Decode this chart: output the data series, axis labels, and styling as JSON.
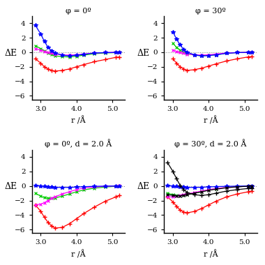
{
  "titles": [
    "φ = 0º",
    "φ = 30º",
    "φ = 0º, d = 2.0 Å",
    "φ = 30º, d = 2.0 Å"
  ],
  "xlabel": "r /Å",
  "ylabel": "ΔE",
  "xlim": [
    2.75,
    5.35
  ],
  "ylim": [
    -6.5,
    5.0
  ],
  "yticks": [
    -6,
    -4,
    -2,
    0,
    2,
    4
  ],
  "xticks": [
    3.0,
    4.0,
    5.0
  ],
  "panel0": {
    "red_plus": {
      "x": [
        2.85,
        3.0,
        3.1,
        3.2,
        3.3,
        3.4,
        3.6,
        3.8,
        4.0,
        4.2,
        4.5,
        4.8,
        5.1,
        5.2
      ],
      "y": [
        -0.9,
        -1.5,
        -2.0,
        -2.3,
        -2.5,
        -2.6,
        -2.5,
        -2.3,
        -2.0,
        -1.7,
        -1.3,
        -1.0,
        -0.7,
        -0.65
      ]
    },
    "green_x": {
      "x": [
        2.85,
        3.0,
        3.1,
        3.2,
        3.3,
        3.4,
        3.6,
        3.8,
        4.0,
        4.2,
        4.5,
        4.8,
        5.1,
        5.2
      ],
      "y": [
        0.9,
        0.5,
        0.2,
        -0.1,
        -0.3,
        -0.5,
        -0.6,
        -0.65,
        -0.55,
        -0.4,
        -0.2,
        -0.1,
        -0.05,
        -0.02
      ]
    },
    "magenta_x": {
      "x": [
        2.85,
        3.0,
        3.1,
        3.2,
        3.3,
        3.4,
        3.6,
        3.8,
        4.0,
        4.2,
        4.5,
        4.8,
        5.1,
        5.2
      ],
      "y": [
        0.5,
        0.3,
        0.1,
        -0.05,
        -0.15,
        -0.25,
        -0.35,
        -0.4,
        -0.35,
        -0.25,
        -0.1,
        -0.05,
        0.0,
        0.02
      ]
    },
    "blue_star": {
      "x": [
        2.85,
        3.0,
        3.1,
        3.2,
        3.3,
        3.4,
        3.6,
        3.8,
        4.0,
        4.2,
        4.5,
        4.8,
        5.1,
        5.2
      ],
      "y": [
        3.7,
        2.5,
        1.5,
        0.7,
        0.2,
        -0.1,
        -0.4,
        -0.5,
        -0.4,
        -0.3,
        -0.1,
        -0.05,
        -0.02,
        -0.01
      ]
    }
  },
  "panel1": {
    "red_plus": {
      "x": [
        3.0,
        3.1,
        3.2,
        3.3,
        3.4,
        3.6,
        3.8,
        4.0,
        4.2,
        4.5,
        4.8,
        5.1,
        5.2
      ],
      "y": [
        -0.9,
        -1.5,
        -2.0,
        -2.3,
        -2.5,
        -2.4,
        -2.2,
        -1.9,
        -1.6,
        -1.2,
        -0.9,
        -0.65,
        -0.6
      ]
    },
    "green_x": {
      "x": [
        3.0,
        3.1,
        3.2,
        3.3,
        3.4,
        3.6,
        3.8,
        4.0,
        4.2,
        4.5,
        4.8,
        5.1,
        5.2
      ],
      "y": [
        1.2,
        0.7,
        0.3,
        0.0,
        -0.2,
        -0.4,
        -0.5,
        -0.45,
        -0.35,
        -0.15,
        -0.05,
        -0.02,
        0.0
      ]
    },
    "magenta_x": {
      "x": [
        3.0,
        3.1,
        3.2,
        3.3,
        3.4,
        3.6,
        3.8,
        4.0,
        4.2,
        4.5,
        4.8,
        5.1,
        5.2
      ],
      "y": [
        0.3,
        0.1,
        -0.05,
        -0.15,
        -0.25,
        -0.35,
        -0.4,
        -0.35,
        -0.25,
        -0.1,
        -0.05,
        0.0,
        0.02
      ]
    },
    "blue_star": {
      "x": [
        3.0,
        3.1,
        3.2,
        3.3,
        3.4,
        3.6,
        3.8,
        4.0,
        4.2,
        4.5,
        4.8,
        5.1,
        5.2
      ],
      "y": [
        2.8,
        1.8,
        1.0,
        0.4,
        0.0,
        -0.35,
        -0.5,
        -0.45,
        -0.35,
        -0.15,
        -0.05,
        -0.02,
        -0.01
      ]
    }
  },
  "panel2": {
    "red_plus": {
      "x": [
        2.85,
        3.0,
        3.1,
        3.2,
        3.3,
        3.4,
        3.6,
        3.8,
        4.0,
        4.2,
        4.5,
        4.8,
        5.1,
        5.2
      ],
      "y": [
        -2.6,
        -3.5,
        -4.3,
        -5.0,
        -5.5,
        -5.8,
        -5.7,
        -5.2,
        -4.5,
        -3.8,
        -2.9,
        -2.1,
        -1.5,
        -1.3
      ]
    },
    "green_x": {
      "x": [
        2.85,
        3.0,
        3.1,
        3.2,
        3.3,
        3.4,
        3.6,
        3.8,
        4.0,
        4.2,
        4.5,
        4.8,
        5.1,
        5.2
      ],
      "y": [
        -1.0,
        -1.4,
        -1.6,
        -1.7,
        -1.7,
        -1.65,
        -1.4,
        -1.1,
        -0.8,
        -0.55,
        -0.3,
        -0.15,
        -0.05,
        -0.02
      ]
    },
    "magenta_x": {
      "x": [
        2.85,
        3.0,
        3.1,
        3.2,
        3.3,
        3.4,
        3.6,
        3.8,
        4.0,
        4.2,
        4.5,
        4.8,
        5.1,
        5.2
      ],
      "y": [
        -2.6,
        -2.5,
        -2.3,
        -2.0,
        -1.7,
        -1.5,
        -1.1,
        -0.8,
        -0.5,
        -0.3,
        -0.15,
        -0.05,
        0.0,
        0.02
      ]
    },
    "blue_star": {
      "x": [
        2.85,
        3.0,
        3.1,
        3.2,
        3.3,
        3.4,
        3.6,
        3.8,
        4.0,
        4.2,
        4.5,
        4.8,
        5.1,
        5.2
      ],
      "y": [
        0.1,
        0.0,
        -0.05,
        -0.1,
        -0.15,
        -0.2,
        -0.2,
        -0.2,
        -0.15,
        -0.1,
        -0.05,
        -0.02,
        0.0,
        0.0
      ]
    }
  },
  "panel3": {
    "red_plus": {
      "x": [
        2.85,
        3.0,
        3.1,
        3.2,
        3.3,
        3.4,
        3.6,
        3.8,
        4.0,
        4.2,
        4.5,
        4.8,
        5.1,
        5.2
      ],
      "y": [
        -1.5,
        -2.2,
        -2.8,
        -3.3,
        -3.6,
        -3.7,
        -3.5,
        -3.1,
        -2.6,
        -2.1,
        -1.5,
        -1.1,
        -0.8,
        -0.7
      ]
    },
    "green_x": {
      "x": [
        2.85,
        3.0,
        3.1,
        3.2,
        3.3,
        3.4,
        3.6,
        3.8,
        4.0,
        4.2,
        4.5,
        4.8,
        5.1,
        5.2
      ],
      "y": [
        -1.0,
        -1.2,
        -1.3,
        -1.35,
        -1.3,
        -1.2,
        -1.0,
        -0.8,
        -0.55,
        -0.4,
        -0.2,
        -0.1,
        -0.03,
        -0.01
      ]
    },
    "magenta_x": {
      "x": [
        2.85,
        3.0,
        3.1,
        3.2,
        3.3,
        3.4,
        3.6,
        3.8,
        4.0,
        4.2,
        4.5,
        4.8,
        5.1,
        5.2
      ],
      "y": [
        -1.5,
        -1.5,
        -1.4,
        -1.3,
        -1.2,
        -1.1,
        -0.9,
        -0.7,
        -0.5,
        -0.35,
        -0.2,
        -0.1,
        -0.03,
        -0.01
      ]
    },
    "blue_star": {
      "x": [
        2.85,
        3.0,
        3.1,
        3.2,
        3.3,
        3.4,
        3.6,
        3.8,
        4.0,
        4.2,
        4.5,
        4.8,
        5.1,
        5.2
      ],
      "y": [
        0.05,
        0.0,
        -0.05,
        -0.1,
        -0.15,
        -0.2,
        -0.2,
        -0.18,
        -0.13,
        -0.09,
        -0.05,
        -0.02,
        0.0,
        0.0
      ]
    },
    "black_plus": {
      "x": [
        2.85,
        3.0,
        3.1,
        3.2,
        3.3,
        3.4,
        3.6,
        3.8,
        4.0,
        4.2,
        4.5,
        4.8,
        5.1,
        5.2
      ],
      "y": [
        3.2,
        2.0,
        1.0,
        0.1,
        -0.5,
        -0.9,
        -1.2,
        -1.3,
        -1.2,
        -1.0,
        -0.7,
        -0.5,
        -0.35,
        -0.3
      ]
    },
    "black_x": {
      "x": [
        2.85,
        3.0,
        3.1,
        3.2,
        3.3,
        3.4,
        3.6,
        3.8,
        4.0,
        4.2,
        4.5,
        4.8,
        5.1,
        5.2
      ],
      "y": [
        -1.2,
        -1.3,
        -1.35,
        -1.35,
        -1.3,
        -1.2,
        -1.0,
        -0.8,
        -0.6,
        -0.45,
        -0.25,
        -0.12,
        -0.04,
        -0.02
      ]
    }
  },
  "colors": {
    "red": "#ff0000",
    "green": "#00cc00",
    "magenta": "#ff00ff",
    "blue": "#0000ff",
    "black": "#000000"
  }
}
